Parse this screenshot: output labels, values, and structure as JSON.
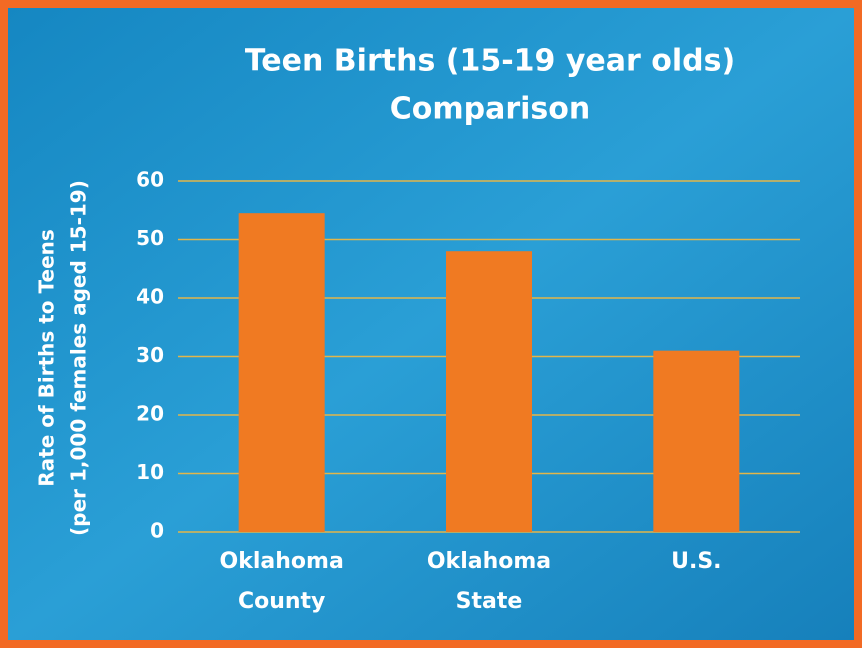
{
  "chart_data": {
    "type": "bar",
    "title": [
      "Teen Births (15-19 year olds)",
      "Comparison"
    ],
    "ylabel": [
      "Rate of Births to Teens",
      "(per 1,000 females aged 15-19)"
    ],
    "categories": [
      [
        "Oklahoma",
        "County"
      ],
      [
        "Oklahoma",
        "State"
      ],
      [
        "U.S."
      ]
    ],
    "values": [
      54.5,
      48,
      31
    ],
    "color": "#f07a22",
    "ylim": [
      0,
      60
    ],
    "yticks": [
      0,
      10,
      20,
      30,
      40,
      50,
      60
    ],
    "grid": true
  }
}
